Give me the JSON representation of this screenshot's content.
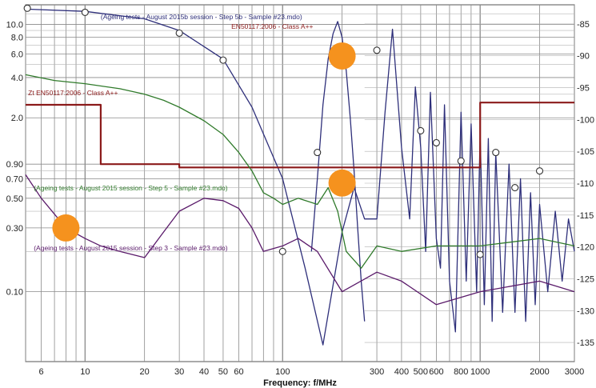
{
  "chart_data": {
    "type": "line",
    "xlabel": "Frequency: f/MHz",
    "x_scale": "log",
    "xlim": [
      5,
      3000
    ],
    "x_ticks": [
      6,
      10,
      20,
      30,
      40,
      50,
      60,
      100,
      300,
      400,
      500,
      600,
      800,
      1000,
      2000,
      3000
    ],
    "y_left_scale": "log",
    "ylim_left": [
      0.03,
      14
    ],
    "y_left_ticks": [
      0.1,
      0.3,
      0.5,
      0.7,
      0.9,
      2.0,
      4.0,
      6.0,
      8.0,
      10.0
    ],
    "ylim_right": [
      -138,
      -82
    ],
    "y_right_ticks": [
      -85,
      -90,
      -95,
      -100,
      -105,
      -110,
      -115,
      -120,
      -125,
      -130,
      -135
    ],
    "grid": true,
    "legend": "annotations",
    "colors": {
      "blue": "#2e2f7a",
      "red": "#8b1a1a",
      "green": "#2f7a2a",
      "purple": "#5a1a6a",
      "orange": "#f5921e",
      "grid": "#8a8a8a"
    },
    "annotations": [
      {
        "text": "(Ageing tests - August 2015b session - Step 5b - Sample #23.mdo)",
        "color": "blue"
      },
      {
        "text": "EN50117:2006 - Class A++",
        "color": "red"
      },
      {
        "text": "Zt EN50117:2006 - Class A++",
        "color": "red"
      },
      {
        "text": "(Ageing tests - August 2015 session - Step 5 - Sample #23.mdo)",
        "color": "green"
      },
      {
        "text": "(Ageing tests - August 2015 session - Step 3 - Sample #23.mdo)",
        "color": "purple"
      }
    ],
    "series": [
      {
        "color": "blue",
        "x": [
          5,
          10,
          20,
          30,
          50,
          70,
          100,
          130,
          160,
          200,
          230,
          260,
          300,
          330,
          360,
          400,
          440,
          470,
          500,
          530,
          560,
          600,
          630,
          660,
          700,
          750,
          800,
          850,
          900,
          960,
          1000,
          1050,
          1100,
          1150,
          1200,
          1300,
          1400,
          1500,
          1600,
          1700,
          1800,
          1900,
          2000,
          2200,
          2400,
          2600,
          2800,
          3000
        ],
        "y": [
          13,
          12.5,
          11,
          9,
          5.5,
          2.4,
          0.7,
          0.15,
          0.04,
          0.28,
          0.6,
          0.35,
          0.35,
          2.2,
          9.2,
          1.2,
          0.35,
          3.4,
          1.2,
          0.2,
          3.1,
          0.25,
          0.15,
          2.5,
          0.12,
          0.05,
          2.2,
          0.12,
          1.8,
          0.1,
          1.5,
          0.08,
          1.4,
          0.06,
          1.1,
          0.07,
          0.9,
          0.07,
          0.7,
          0.06,
          0.55,
          0.08,
          0.45,
          0.1,
          0.4,
          0.12,
          0.35,
          0.2
        ]
      },
      {
        "color": "blue",
        "x": [
          140,
          150,
          160,
          170,
          180,
          190,
          200,
          210,
          220,
          230,
          240,
          250,
          260
        ],
        "y": [
          0.2,
          0.7,
          2.5,
          5.5,
          8.5,
          10.5,
          8,
          4.5,
          2,
          0.8,
          0.3,
          0.12,
          0.06
        ]
      },
      {
        "color": "red",
        "x": [
          5,
          12,
          12,
          30,
          30,
          1000,
          1000,
          3000
        ],
        "y": [
          2.5,
          2.5,
          0.9,
          0.9,
          0.85,
          0.85,
          2.6,
          2.6
        ]
      },
      {
        "color": "green",
        "x": [
          5,
          7,
          10,
          15,
          20,
          25,
          30,
          40,
          50,
          60,
          70,
          80,
          90,
          100,
          120,
          150,
          170,
          190,
          210,
          250,
          300,
          400,
          600,
          1000,
          2000,
          3000
        ],
        "y": [
          4.2,
          3.8,
          3.6,
          3.3,
          3.0,
          2.7,
          2.4,
          1.9,
          1.5,
          1.1,
          0.8,
          0.55,
          0.5,
          0.45,
          0.5,
          0.45,
          0.6,
          0.4,
          0.2,
          0.15,
          0.22,
          0.2,
          0.22,
          0.22,
          0.25,
          0.22
        ]
      },
      {
        "color": "purple",
        "x": [
          5,
          6,
          8,
          10,
          12,
          15,
          20,
          25,
          30,
          40,
          50,
          60,
          70,
          80,
          100,
          120,
          150,
          200,
          300,
          400,
          600,
          1000,
          2000,
          3000
        ],
        "y": [
          0.75,
          0.5,
          0.3,
          0.25,
          0.22,
          0.2,
          0.18,
          0.28,
          0.4,
          0.5,
          0.48,
          0.42,
          0.3,
          0.2,
          0.22,
          0.25,
          0.2,
          0.1,
          0.14,
          0.12,
          0.08,
          0.1,
          0.12,
          0.1
        ]
      }
    ],
    "markers": [
      {
        "x": 5.1,
        "y": 13.2,
        "series": "blue"
      },
      {
        "x": 10,
        "y": 12.3,
        "series": "blue"
      },
      {
        "x": 30,
        "y": 8.6,
        "series": "blue"
      },
      {
        "x": 50,
        "y": 5.4,
        "series": "blue"
      },
      {
        "x": 100,
        "y": 0.2,
        "series": "blue"
      },
      {
        "x": 150,
        "y": 1.1,
        "series": "blue"
      },
      {
        "x": 300,
        "y": 6.4,
        "series": "blue"
      },
      {
        "x": 500,
        "y": 1.6,
        "series": "blue"
      },
      {
        "x": 600,
        "y": 1.3,
        "series": "blue"
      },
      {
        "x": 800,
        "y": 0.95,
        "series": "blue"
      },
      {
        "x": 1000,
        "y": 0.19,
        "series": "blue"
      },
      {
        "x": 1200,
        "y": 1.1,
        "series": "blue"
      },
      {
        "x": 1500,
        "y": 0.6,
        "series": "blue"
      },
      {
        "x": 2000,
        "y": 0.8,
        "series": "blue"
      }
    ],
    "highlights": [
      {
        "x": 200,
        "y": 5.8
      },
      {
        "x": 200,
        "y": 0.65
      },
      {
        "x": 8,
        "y": 0.3
      }
    ]
  }
}
